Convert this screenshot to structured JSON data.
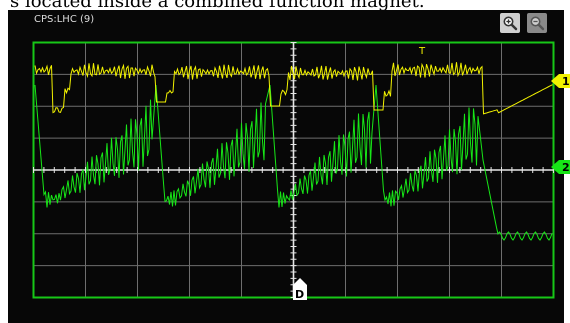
{
  "caption": "s located inside a combined function magnet.",
  "scope": {
    "title": "CPS:LHC (9)",
    "channels": [
      {
        "label": "1",
        "color": "#f2f200"
      },
      {
        "label": "2",
        "color": "#17e617"
      }
    ],
    "trigger_label": "T",
    "delay_marker_label": "D",
    "grid": {
      "divisions_x": 10,
      "divisions_y": 8
    },
    "colors": {
      "background": "#070707",
      "grid": "#6e6e6e",
      "frame": "#17c717",
      "center_axis": "#e6e6e6"
    },
    "icons": {
      "zoom_in": "zoom-in-icon",
      "zoom_out": "zoom-out-icon"
    }
  }
}
